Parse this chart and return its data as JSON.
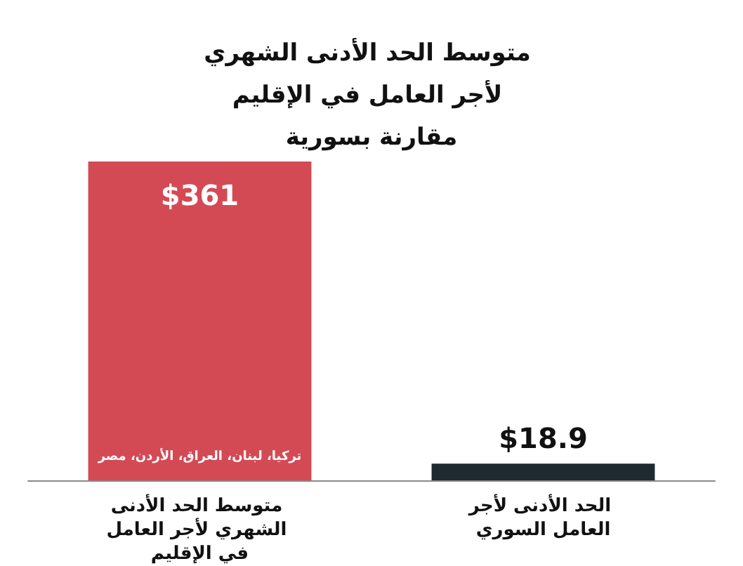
{
  "chart_data": {
    "type": "bar",
    "title": "متوسط الحد الأدنى الشهري لأجر العامل في الإقليم مقارنة بسورية",
    "categories": [
      "متوسط الحد الأدنى الشهري لأجر العامل في الإقليم",
      "الحد الأدنى لأجر العامل السوري"
    ],
    "values": [
      361,
      18.9
    ],
    "colors": [
      "#d34a55",
      "#1f2a30"
    ],
    "value_labels": [
      "$361",
      "$18.9"
    ],
    "annotations": [
      "تركيا، لبنان، العراق، الأردن، مصر"
    ],
    "grid": false
  }
}
